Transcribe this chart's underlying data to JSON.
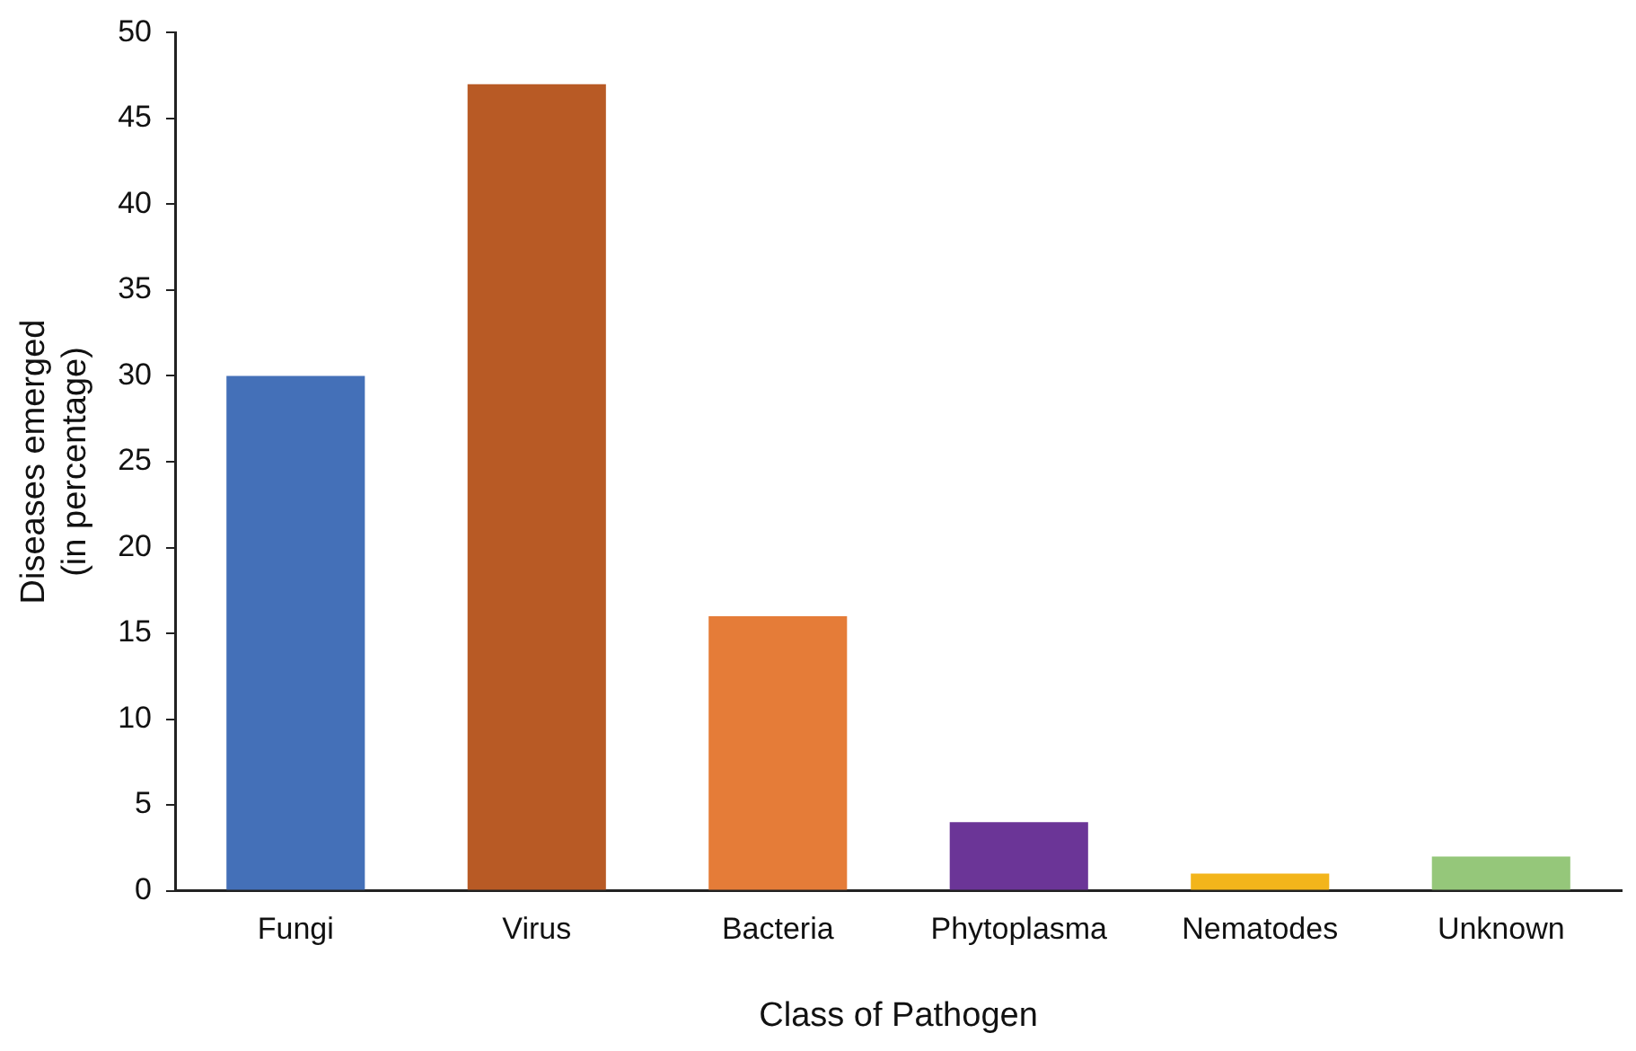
{
  "chart_data": {
    "type": "bar",
    "xlabel": "Class of Pathogen",
    "ylabel": "Diseases emerged\n(in percentage)",
    "categories": [
      "Fungi",
      "Virus",
      "Bacteria",
      "Phytoplasma",
      "Nematodes",
      "Unknown"
    ],
    "values": [
      30,
      47,
      16,
      4,
      1,
      2
    ],
    "colors": [
      "#4470b8",
      "#b85a25",
      "#e57c38",
      "#6b3597",
      "#f3b51b",
      "#95c77a"
    ],
    "ylim": [
      0,
      50
    ],
    "yticks": [
      0,
      5,
      10,
      15,
      20,
      25,
      30,
      35,
      40,
      45,
      50
    ],
    "grid": false,
    "legend": false
  }
}
